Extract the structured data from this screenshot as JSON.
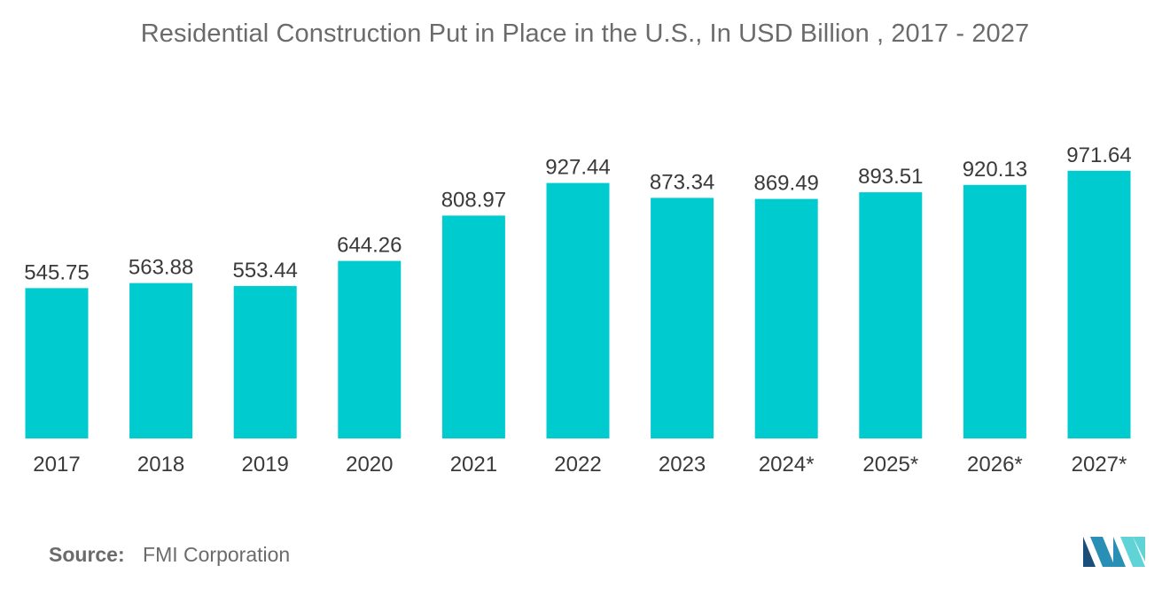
{
  "chart_data": {
    "type": "bar",
    "title": "Residential Construction Put in Place in the U.S., In USD Billion , 2017 - 2027",
    "categories": [
      "2017",
      "2018",
      "2019",
      "2020",
      "2021",
      "2022",
      "2023",
      "2024*",
      "2025*",
      "2026*",
      "2027*"
    ],
    "values": [
      545.75,
      563.88,
      553.44,
      644.26,
      808.97,
      927.44,
      873.34,
      869.49,
      893.51,
      920.13,
      971.64
    ],
    "value_labels": [
      "545.75",
      "563.88",
      "553.44",
      "644.26",
      "808.97",
      "927.44",
      "873.34",
      "869.49",
      "893.51",
      "920.13",
      "971.64"
    ],
    "xlabel": "",
    "ylabel": "",
    "ylim": [
      0,
      1000
    ],
    "grid": false,
    "bar_color": "#00cccf"
  },
  "footer": {
    "source_key": "Source:",
    "source_value": "FMI Corporation"
  },
  "logo": {
    "icon": "mordor-intelligence-logo-icon",
    "colors": [
      "#1b4f7a",
      "#2a8fb5",
      "#5fd3d6"
    ]
  }
}
